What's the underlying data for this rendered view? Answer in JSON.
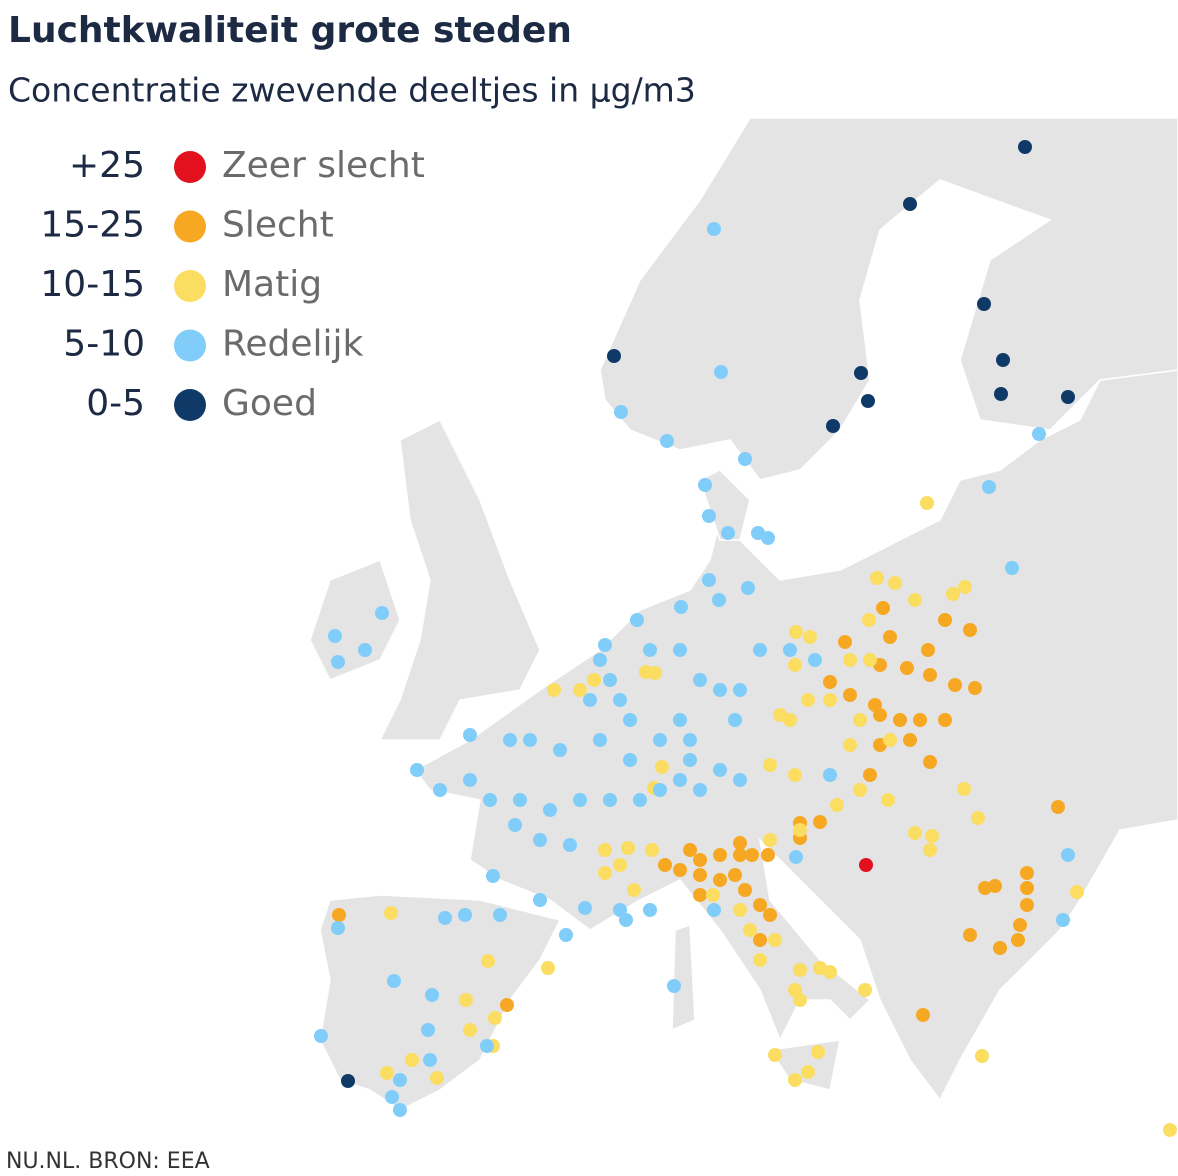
{
  "header": {
    "title": "Luchtkwaliteit grote steden",
    "subtitle": "Concentratie zwevende deeltjes in µg/m3"
  },
  "legend": [
    {
      "range": "+25",
      "label": "Zeer slecht",
      "color": "#e3101d"
    },
    {
      "range": "15-25",
      "label": "Slecht",
      "color": "#f7a823"
    },
    {
      "range": "10-15",
      "label": "Matig",
      "color": "#fbdd62"
    },
    {
      "range": "5-10",
      "label": "Redelijk",
      "color": "#7fcdf8"
    },
    {
      "range": "0-5",
      "label": "Goed",
      "color": "#0f3a68"
    }
  ],
  "source": "NU.NL. BRON: EEA"
}
